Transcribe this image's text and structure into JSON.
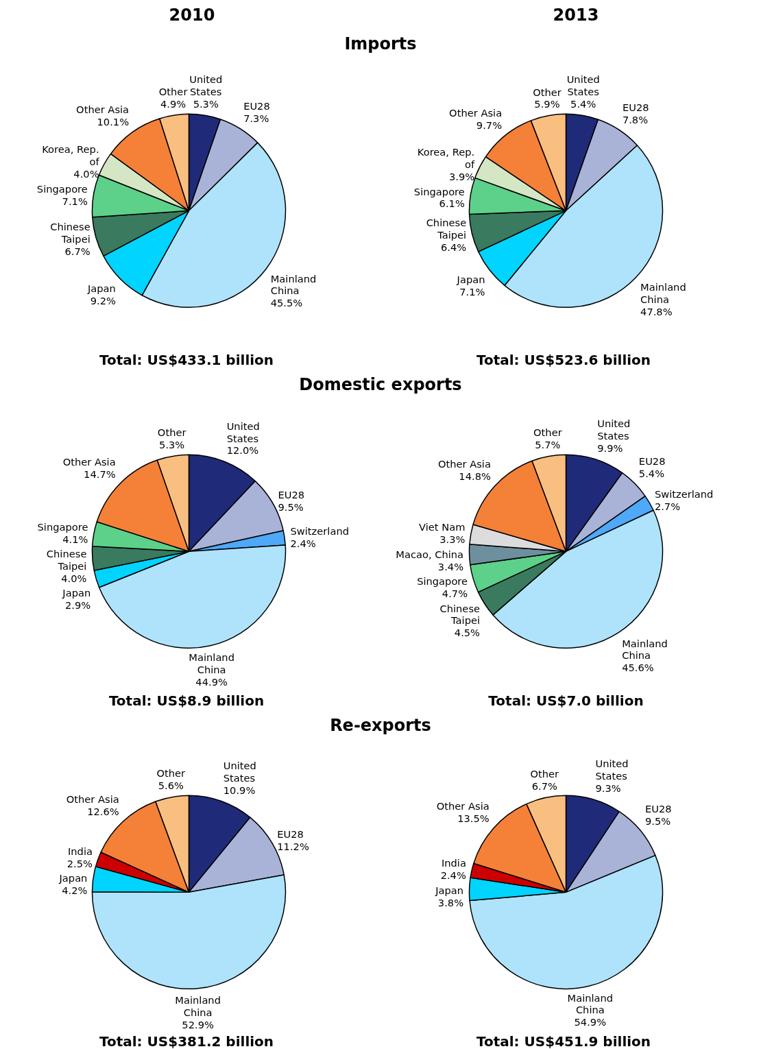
{
  "chart_data": [
    {
      "type": "pie",
      "title": "2010",
      "subtitle": "Imports",
      "categories": [
        "United States",
        "EU28",
        "Mainland China",
        "Japan",
        "Chinese Taipei",
        "Singapore",
        "Korea, Rep. of",
        "Other Asia",
        "Other"
      ],
      "values": [
        5.3,
        7.3,
        45.5,
        9.2,
        6.7,
        7.1,
        4.0,
        10.1,
        4.9
      ],
      "value_labels": [
        "5.3%",
        "7.3%",
        "45.5%",
        "9.2%",
        "6.7%",
        "7.1%",
        "4.0%",
        "10.1%",
        "4.9%"
      ],
      "colors": [
        "#1f2a78",
        "#a9b3d8",
        "#aee3fb",
        "#00d4ff",
        "#3a7a5e",
        "#5dd08a",
        "#d4e6c4",
        "#f58038",
        "#f9bf80"
      ],
      "annotations": [
        "Total:  US$433.1 billion"
      ]
    },
    {
      "type": "pie",
      "title": "2013",
      "categories": [
        "United States",
        "EU28",
        "Mainland China",
        "Japan",
        "Chinese Taipei",
        "Singapore",
        "Korea, Rep. of",
        "Other Asia",
        "Other"
      ],
      "values": [
        5.4,
        7.8,
        47.8,
        7.1,
        6.4,
        6.1,
        3.9,
        9.7,
        5.9
      ],
      "value_labels": [
        "5.4%",
        "7.8%",
        "47.8%",
        "7.1%",
        "6.4%",
        "6.1%",
        "3.9%",
        "9.7%",
        "5.9%"
      ],
      "colors": [
        "#1f2a78",
        "#a9b3d8",
        "#aee3fb",
        "#00d4ff",
        "#3a7a5e",
        "#5dd08a",
        "#d4e6c4",
        "#f58038",
        "#f9bf80"
      ],
      "annotations": [
        "Total:  US$523.6 billion"
      ]
    },
    {
      "type": "pie",
      "subtitle": "Domestic exports",
      "categories": [
        "United States",
        "EU28",
        "Switzerland",
        "Mainland China",
        "Japan",
        "Chinese Taipei",
        "Singapore",
        "Other Asia",
        "Other"
      ],
      "values": [
        12.0,
        9.5,
        2.4,
        44.9,
        2.9,
        4.0,
        4.1,
        14.7,
        5.3
      ],
      "value_labels": [
        "12.0%",
        "9.5%",
        "2.4%",
        "44.9%",
        "2.9%",
        "4.0%",
        "4.1%",
        "14.7%",
        "5.3%"
      ],
      "colors": [
        "#1f2a78",
        "#a9b3d8",
        "#4fa8f8",
        "#aee3fb",
        "#00d4ff",
        "#3a7a5e",
        "#5dd08a",
        "#f58038",
        "#f9bf80"
      ],
      "annotations": [
        "Total:  US$8.9 billion"
      ]
    },
    {
      "type": "pie",
      "categories": [
        "United States",
        "EU28",
        "Switzerland",
        "Mainland China",
        "Chinese Taipei",
        "Singapore",
        "Macao, China",
        "Viet Nam",
        "Other Asia",
        "Other"
      ],
      "values": [
        9.9,
        5.4,
        2.7,
        45.6,
        4.5,
        4.7,
        3.4,
        3.3,
        14.8,
        5.7
      ],
      "value_labels": [
        "9.9%",
        "5.4%",
        "2.7%",
        "45.6%",
        "4.5%",
        "4.7%",
        "3.4%",
        "3.3%",
        "14.8%",
        "5.7%"
      ],
      "colors": [
        "#1f2a78",
        "#a9b3d8",
        "#4fa8f8",
        "#aee3fb",
        "#3a7a5e",
        "#5dd08a",
        "#6e8f9e",
        "#dcdcdc",
        "#f58038",
        "#f9bf80"
      ],
      "annotations": [
        "Total: US$7.0 billion"
      ]
    },
    {
      "type": "pie",
      "subtitle": "Re-exports",
      "categories": [
        "United States",
        "EU28",
        "Mainland China",
        "Japan",
        "India",
        "Other Asia",
        "Other"
      ],
      "values": [
        10.9,
        11.2,
        52.9,
        4.2,
        2.5,
        12.6,
        5.6
      ],
      "value_labels": [
        "10.9%",
        "11.2%",
        "52.9%",
        "4.2%",
        "2.5%",
        "12.6%",
        "5.6%"
      ],
      "colors": [
        "#1f2a78",
        "#a9b3d8",
        "#aee3fb",
        "#00d4ff",
        "#cc0000",
        "#f58038",
        "#f9bf80"
      ],
      "annotations": [
        "Total:  US$381.2 billion"
      ]
    },
    {
      "type": "pie",
      "categories": [
        "United States",
        "EU28",
        "Mainland China",
        "Japan",
        "India",
        "Other Asia",
        "Other"
      ],
      "values": [
        9.3,
        9.5,
        54.9,
        3.8,
        2.4,
        13.5,
        6.7
      ],
      "value_labels": [
        "9.3%",
        "9.5%",
        "54.9%",
        "3.8%",
        "2.4%",
        "13.5%",
        "6.7%"
      ],
      "colors": [
        "#1f2a78",
        "#a9b3d8",
        "#aee3fb",
        "#00d4ff",
        "#cc0000",
        "#f58038",
        "#f9bf80"
      ],
      "annotations": [
        "Total:  US$451.9 billion"
      ]
    }
  ]
}
